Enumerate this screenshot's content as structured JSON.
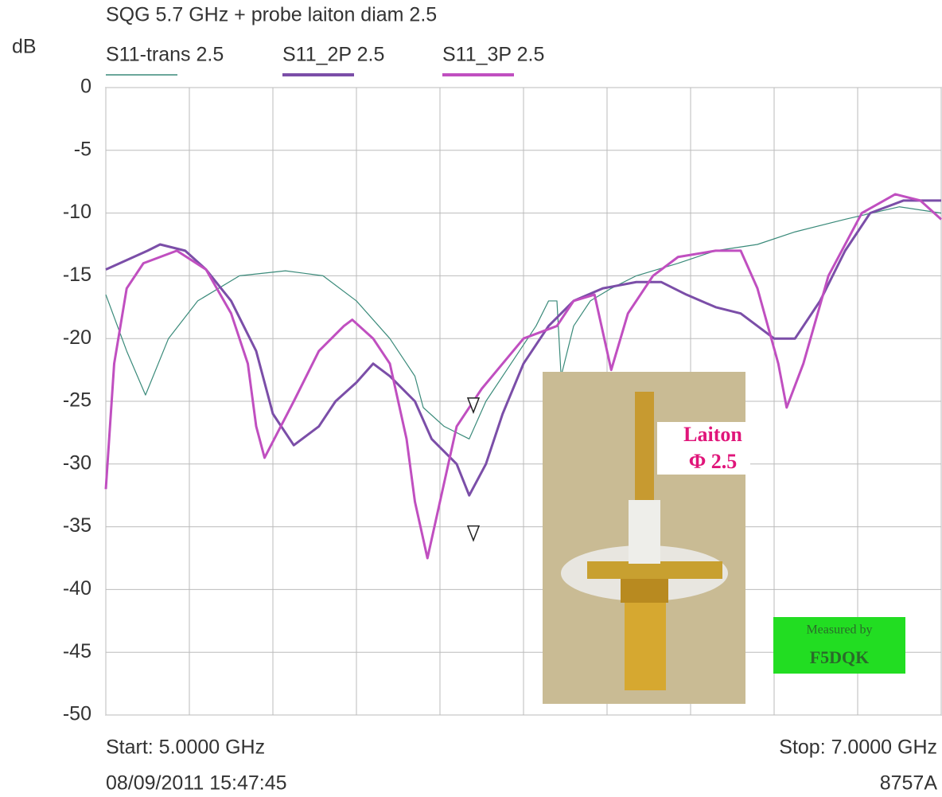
{
  "chart_data": {
    "type": "line",
    "title": "SQG 5.7 GHz + probe laiton diam 2.5",
    "y_label": "dB",
    "start_label": "Start: 5.0000 GHz",
    "stop_label": "Stop: 7.0000 GHz",
    "timestamp": "08/09/2011 15:47:45",
    "instrument": "8757A",
    "xlim": [
      5,
      7
    ],
    "xticks": [
      5,
      5.2,
      5.4,
      5.6,
      5.8,
      6,
      6.2,
      6.4,
      6.6,
      6.8,
      7
    ],
    "ylim": [
      -50,
      0
    ],
    "yticks": [
      0,
      -5,
      -10,
      -15,
      -20,
      -25,
      -30,
      -35,
      -40,
      -45,
      -50
    ],
    "grid": true,
    "series": [
      {
        "name": "S11-trans 2.5",
        "color": "#3a8a7a",
        "x": [
          5.0,
          5.05,
          5.095,
          5.15,
          5.22,
          5.32,
          5.43,
          5.52,
          5.6,
          5.68,
          5.74,
          5.76,
          5.81,
          5.87,
          5.91,
          5.97,
          6.03,
          6.06,
          6.08,
          6.09,
          6.12,
          6.16,
          6.21,
          6.27,
          6.37,
          6.46,
          6.56,
          6.65,
          6.77,
          6.9,
          7.0
        ],
        "values": [
          -16.5,
          -21,
          -24.5,
          -20,
          -17,
          -15,
          -14.6,
          -15,
          -17,
          -20,
          -23,
          -25.5,
          -27,
          -28,
          -25,
          -22,
          -19,
          -17,
          -17,
          -23,
          -19,
          -17,
          -16,
          -15,
          -14,
          -13,
          -12.5,
          -11.5,
          -10.5,
          -9.5,
          -10
        ]
      },
      {
        "name": "S11_2P 2.5",
        "color": "#7b4ea8",
        "x": [
          5.0,
          5.1,
          5.13,
          5.19,
          5.24,
          5.3,
          5.36,
          5.4,
          5.45,
          5.51,
          5.55,
          5.6,
          5.64,
          5.68,
          5.74,
          5.78,
          5.84,
          5.87,
          5.91,
          5.95,
          6.0,
          6.06,
          6.12,
          6.19,
          6.27,
          6.33,
          6.39,
          6.46,
          6.52,
          6.6,
          6.65,
          6.71,
          6.77,
          6.83,
          6.91,
          7.0
        ],
        "values": [
          -14.5,
          -13,
          -12.5,
          -13,
          -14.5,
          -17,
          -21,
          -26,
          -28.5,
          -27,
          -25,
          -23.5,
          -22,
          -23,
          -25,
          -28,
          -30,
          -32.5,
          -30,
          -26,
          -22,
          -19,
          -17,
          -16,
          -15.5,
          -15.5,
          -16.5,
          -17.5,
          -18,
          -20,
          -20,
          -17,
          -13,
          -10,
          -9,
          -9
        ]
      },
      {
        "name": "S11_3P 2.5",
        "color": "#c04fc0",
        "x": [
          5.0,
          5.02,
          5.05,
          5.09,
          5.17,
          5.24,
          5.3,
          5.34,
          5.36,
          5.38,
          5.45,
          5.51,
          5.57,
          5.59,
          5.64,
          5.68,
          5.72,
          5.74,
          5.76,
          5.77,
          5.8,
          5.84,
          5.9,
          5.95,
          6.0,
          6.08,
          6.12,
          6.17,
          6.21,
          6.25,
          6.31,
          6.37,
          6.46,
          6.52,
          6.56,
          6.61,
          6.63,
          6.67,
          6.73,
          6.81,
          6.89,
          6.95,
          7.0
        ],
        "values": [
          -32,
          -22,
          -16,
          -14,
          -13,
          -14.5,
          -18,
          -22,
          -27,
          -29.5,
          -25,
          -21,
          -19,
          -18.5,
          -20,
          -22,
          -28,
          -33,
          -36,
          -37.5,
          -33,
          -27,
          -24,
          -22,
          -20,
          -19,
          -17,
          -16.5,
          -22.5,
          -18,
          -15,
          -13.5,
          -13,
          -13,
          -16,
          -22,
          -25.5,
          -22,
          -15,
          -10,
          -8.5,
          -9,
          -10.5
        ]
      }
    ],
    "markers": {
      "x": [
        5.88,
        5.88
      ],
      "values": [
        -25.5,
        -35.7
      ]
    },
    "photo_label": [
      "Laiton",
      "Φ 2.5"
    ],
    "badge": [
      "Measured by",
      "F5DQK"
    ]
  }
}
